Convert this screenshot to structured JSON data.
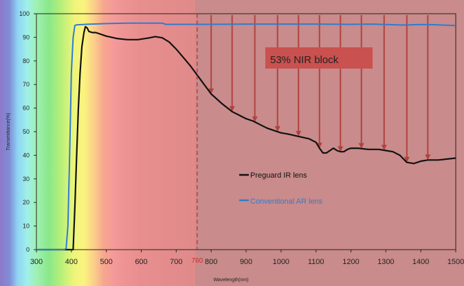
{
  "chart_data": {
    "type": "line",
    "title": "",
    "xlabel": "Wavelength(nm)",
    "ylabel": "Transmittance(%)",
    "xlim": [
      300,
      1500
    ],
    "ylim": [
      0,
      100
    ],
    "x_ticks": [
      300,
      400,
      500,
      600,
      700,
      800,
      900,
      1000,
      1100,
      1200,
      1300,
      1400,
      1500
    ],
    "y_ticks": [
      0,
      10,
      20,
      30,
      40,
      50,
      60,
      70,
      80,
      90,
      100
    ],
    "grid": false,
    "legend_position": "center-right",
    "marker_line": {
      "x": 760,
      "label": "760",
      "color": "#cc2a2a"
    },
    "annotation": {
      "text": "53% NIR block",
      "bg_color": "#c9514f"
    },
    "arrows_x": [
      800,
      860,
      925,
      990,
      1050,
      1110,
      1170,
      1230,
      1295,
      1360,
      1420
    ],
    "series": [
      {
        "name": "Preguard IR lens",
        "color": "#111111",
        "points": [
          [
            300,
            0
          ],
          [
            405,
            0
          ],
          [
            410,
            18
          ],
          [
            415,
            40
          ],
          [
            420,
            60
          ],
          [
            425,
            75
          ],
          [
            430,
            86
          ],
          [
            436,
            92
          ],
          [
            440,
            94.5
          ],
          [
            445,
            94
          ],
          [
            450,
            92.5
          ],
          [
            460,
            92
          ],
          [
            470,
            92
          ],
          [
            480,
            91.5
          ],
          [
            500,
            90.5
          ],
          [
            530,
            89.5
          ],
          [
            560,
            89
          ],
          [
            590,
            89
          ],
          [
            620,
            89.7
          ],
          [
            640,
            90.3
          ],
          [
            660,
            89.8
          ],
          [
            680,
            88
          ],
          [
            700,
            85
          ],
          [
            720,
            81.5
          ],
          [
            740,
            78
          ],
          [
            760,
            74
          ],
          [
            780,
            70
          ],
          [
            800,
            66
          ],
          [
            830,
            62
          ],
          [
            860,
            58.5
          ],
          [
            880,
            57
          ],
          [
            900,
            55.5
          ],
          [
            920,
            54.5
          ],
          [
            940,
            53
          ],
          [
            960,
            51.5
          ],
          [
            980,
            50.5
          ],
          [
            1000,
            49.5
          ],
          [
            1020,
            49
          ],
          [
            1050,
            48
          ],
          [
            1080,
            47
          ],
          [
            1100,
            45.5
          ],
          [
            1110,
            43
          ],
          [
            1120,
            41
          ],
          [
            1130,
            41
          ],
          [
            1140,
            42
          ],
          [
            1150,
            43
          ],
          [
            1160,
            42
          ],
          [
            1170,
            41.5
          ],
          [
            1180,
            41.5
          ],
          [
            1190,
            42.5
          ],
          [
            1200,
            43
          ],
          [
            1220,
            43
          ],
          [
            1250,
            42.5
          ],
          [
            1280,
            42.5
          ],
          [
            1300,
            42
          ],
          [
            1320,
            41.5
          ],
          [
            1340,
            40
          ],
          [
            1360,
            37
          ],
          [
            1380,
            36.5
          ],
          [
            1400,
            37.5
          ],
          [
            1420,
            38
          ],
          [
            1450,
            38
          ],
          [
            1480,
            38.5
          ],
          [
            1500,
            38.8
          ]
        ]
      },
      {
        "name": "Conventional AR lens",
        "color": "#2e7ccf",
        "points": [
          [
            300,
            0
          ],
          [
            380,
            0
          ],
          [
            385,
            0.5
          ],
          [
            390,
            10
          ],
          [
            395,
            40
          ],
          [
            400,
            75
          ],
          [
            405,
            90
          ],
          [
            410,
            95
          ],
          [
            415,
            95.3
          ],
          [
            440,
            95.5
          ],
          [
            500,
            95.8
          ],
          [
            560,
            96
          ],
          [
            600,
            96
          ],
          [
            660,
            96
          ],
          [
            670,
            95.5
          ],
          [
            700,
            95.5
          ],
          [
            800,
            95.5
          ],
          [
            900,
            95.6
          ],
          [
            1000,
            95.6
          ],
          [
            1100,
            95.6
          ],
          [
            1200,
            95.5
          ],
          [
            1260,
            95.6
          ],
          [
            1300,
            95.4
          ],
          [
            1350,
            95.2
          ],
          [
            1400,
            95.4
          ],
          [
            1450,
            95.3
          ],
          [
            1500,
            95
          ]
        ]
      }
    ]
  }
}
